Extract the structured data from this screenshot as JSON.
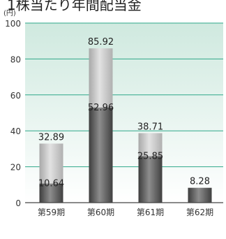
{
  "chart_data": {
    "type": "bar",
    "title": "1株当たり年間配当金",
    "unit_label": "(円)",
    "categories": [
      "第59期",
      "第60期",
      "第61期",
      "第62期"
    ],
    "series": [
      {
        "values": [
          32.89,
          85.92,
          38.71,
          8.28
        ]
      },
      {
        "values": [
          10.64,
          52.96,
          25.85,
          8.28
        ]
      }
    ],
    "value_labels": {
      "total": [
        "32.89",
        "85.92",
        "38.71",
        "8.28"
      ],
      "inner": [
        "10.64",
        "52.96",
        "25.85",
        ""
      ]
    },
    "ylim": [
      0,
      100
    ],
    "yticks": [
      0,
      20,
      40,
      60,
      80,
      100
    ],
    "grid": true,
    "colors": {
      "top_segment": "#c4c4c4",
      "bottom_segment": "#5e5e5e",
      "grid_line": "#2ea889",
      "background_gradient_top": "#cfe9df",
      "axis_text": "#333333"
    }
  }
}
